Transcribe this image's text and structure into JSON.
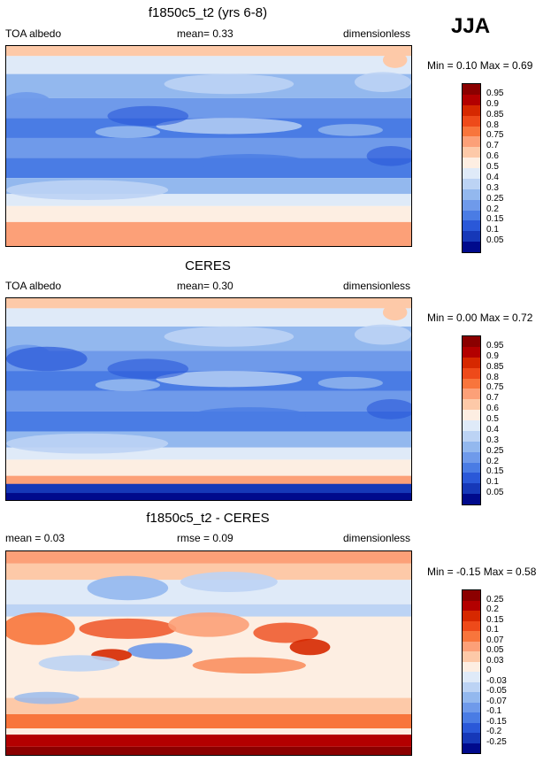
{
  "season": "JJA",
  "panels": [
    {
      "title": "f1850c5_t2 (yrs 6-8)",
      "left_label": "TOA albedo",
      "center_label": "mean=  0.33",
      "right_label": "dimensionless",
      "minmax": "Min =  0.10 Max =  0.69",
      "colorbar": {
        "labels": [
          "0.95",
          "0.9",
          "0.85",
          "0.8",
          "0.75",
          "0.7",
          "0.6",
          "0.5",
          "0.4",
          "0.3",
          "0.25",
          "0.2",
          "0.15",
          "0.1",
          "0.05"
        ],
        "colors": [
          "#8b0000",
          "#b30000",
          "#d62800",
          "#ee4a1a",
          "#f8753c",
          "#fca078",
          "#fdc9a8",
          "#fdeee2",
          "#dfeaf8",
          "#bcd3f4",
          "#93b8ee",
          "#6f9aea",
          "#4a7ce4",
          "#2a58d8",
          "#1638b8",
          "#000a8c"
        ]
      }
    },
    {
      "title": "CERES",
      "left_label": "TOA albedo",
      "center_label": "mean=  0.30",
      "right_label": "dimensionless",
      "minmax": "Min =  0.00 Max =  0.72",
      "colorbar": {
        "labels": [
          "0.95",
          "0.9",
          "0.85",
          "0.8",
          "0.75",
          "0.7",
          "0.6",
          "0.5",
          "0.4",
          "0.3",
          "0.25",
          "0.2",
          "0.15",
          "0.1",
          "0.05"
        ],
        "colors": [
          "#8b0000",
          "#b30000",
          "#d62800",
          "#ee4a1a",
          "#f8753c",
          "#fca078",
          "#fdc9a8",
          "#fdeee2",
          "#dfeaf8",
          "#bcd3f4",
          "#93b8ee",
          "#6f9aea",
          "#4a7ce4",
          "#2a58d8",
          "#1638b8",
          "#000a8c"
        ]
      }
    },
    {
      "title": "f1850c5_t2 - CERES",
      "left_label": "mean =  0.03",
      "center_label": "rmse =  0.09",
      "right_label": "dimensionless",
      "minmax": "Min = -0.15 Max =  0.58",
      "colorbar": {
        "labels": [
          "0.25",
          "0.2",
          "0.15",
          "0.1",
          "0.07",
          "0.05",
          "0.03",
          "0",
          "-0.03",
          "-0.05",
          "-0.07",
          "-0.1",
          "-0.15",
          "-0.2",
          "-0.25"
        ],
        "colors": [
          "#8b0000",
          "#b30000",
          "#d62800",
          "#ee4a1a",
          "#f8753c",
          "#fca078",
          "#fdc9a8",
          "#fdeee2",
          "#dfeaf8",
          "#bcd3f4",
          "#93b8ee",
          "#6f9aea",
          "#4a7ce4",
          "#2a58d8",
          "#1638b8",
          "#000a8c"
        ]
      }
    }
  ]
}
